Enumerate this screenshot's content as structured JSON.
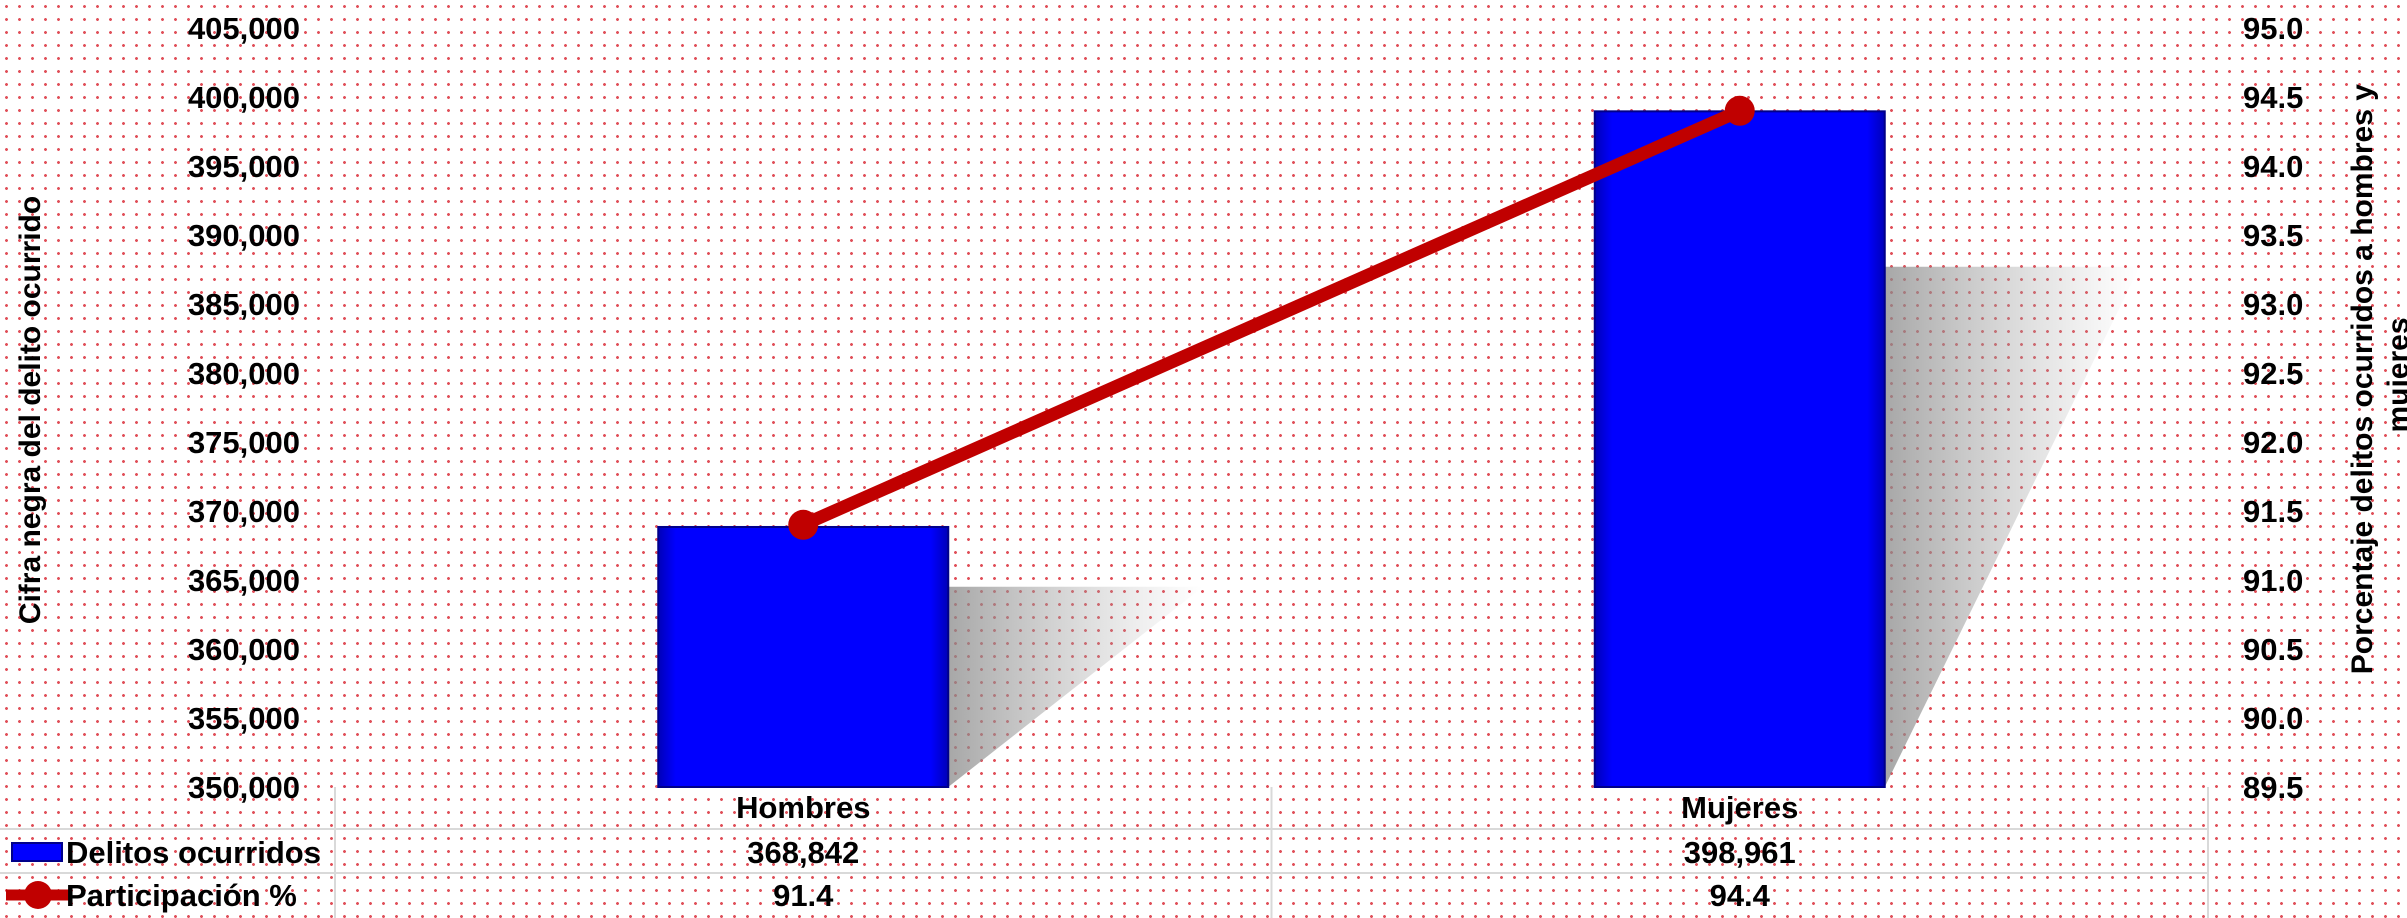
{
  "chart_data": {
    "type": "bar",
    "categories": [
      "Hombres",
      "Mujeres"
    ],
    "series": [
      {
        "name": "Delitos ocurridos",
        "type": "bar",
        "axis": "left",
        "color": "#0000ff",
        "values": [
          368842,
          398961
        ],
        "labels": [
          "368,842",
          "398,961"
        ]
      },
      {
        "name": "Participación %",
        "type": "line",
        "axis": "right",
        "color": "#c00000",
        "values": [
          91.4,
          94.4
        ],
        "labels": [
          "91.4",
          "94.4"
        ]
      }
    ],
    "ylabel": "Cifra negra del delito ocurrido",
    "ylabel_right": "Porcentaje delitos ocurridos a hombres y mujeres",
    "ylabel_right_lines": [
      "Porcentaje delitos ocurridos a hombres y",
      "mujeres"
    ],
    "ylim": [
      350000,
      405000
    ],
    "ylim_right": [
      89.5,
      95.0
    ],
    "yticks": [
      "405,000",
      "400,000",
      "395,000",
      "390,000",
      "385,000",
      "380,000",
      "375,000",
      "370,000",
      "365,000",
      "360,000",
      "355,000",
      "350,000"
    ],
    "yticks_right": [
      "95.0",
      "94.5",
      "94.0",
      "93.5",
      "93.0",
      "92.5",
      "92.0",
      "91.5",
      "91.0",
      "90.5",
      "90.0",
      "89.5"
    ],
    "legend": "data-table-bottom",
    "grid": false
  }
}
